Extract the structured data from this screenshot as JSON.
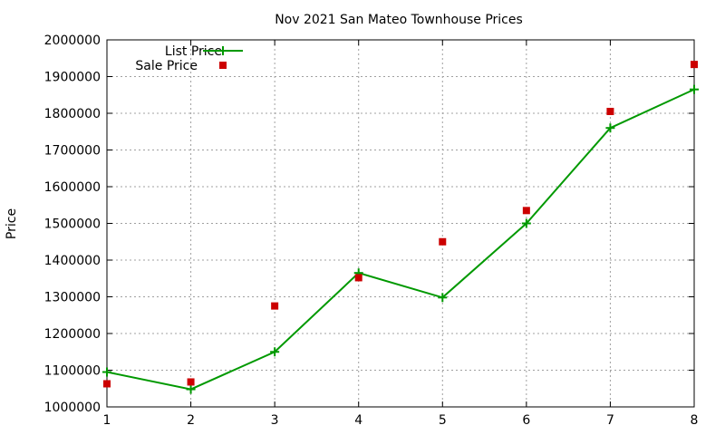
{
  "chart_data": {
    "type": "line",
    "title": "Nov 2021 San Mateo Townhouse Prices",
    "xlabel": "",
    "ylabel": "Price",
    "x": [
      1,
      2,
      3,
      4,
      5,
      6,
      7,
      8
    ],
    "xlim": [
      1,
      8
    ],
    "ylim": [
      1000000,
      2000000
    ],
    "yticks": [
      1000000,
      1100000,
      1200000,
      1300000,
      1400000,
      1500000,
      1600000,
      1700000,
      1800000,
      1900000,
      2000000
    ],
    "xticks": [
      1,
      2,
      3,
      4,
      5,
      6,
      7,
      8
    ],
    "grid": true,
    "legend": "top-left",
    "series": [
      {
        "name": "List Price",
        "style": "line+cross",
        "color": "#009900",
        "values": [
          1095000,
          1048000,
          1150000,
          1365000,
          1298000,
          1500000,
          1760000,
          1865000
        ]
      },
      {
        "name": "Sale Price",
        "style": "square-points",
        "color": "#cc0000",
        "values": [
          1063000,
          1068000,
          1275000,
          1352000,
          1450000,
          1535000,
          1805000,
          1933000
        ]
      }
    ]
  }
}
